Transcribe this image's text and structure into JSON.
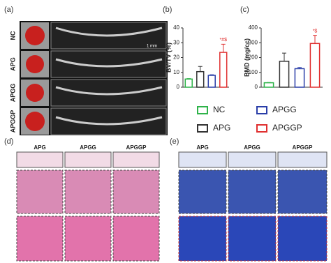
{
  "chart_data": [
    {
      "type": "bar",
      "y_label": "BV/TV (%)",
      "categories": [
        null,
        null,
        null,
        null
      ],
      "values": [
        5.5,
        10.5,
        8,
        23.5
      ],
      "errors": [
        0.3,
        3.5,
        0.4,
        5.5
      ],
      "colors": [
        "#2fb34a",
        "#333333",
        "#2a3ea8",
        "#e03030"
      ],
      "annotations": [
        null,
        null,
        null,
        "*#$"
      ],
      "ylim": [
        0,
        40
      ],
      "yticks": [
        0,
        10,
        20,
        30,
        40
      ]
    },
    {
      "type": "bar",
      "y_label": "BMD (mg/cc)",
      "categories": [
        null,
        null,
        null,
        null
      ],
      "values": [
        30,
        175,
        125,
        295
      ],
      "errors": [
        2,
        55,
        8,
        55
      ],
      "colors": [
        "#2fb34a",
        "#333333",
        "#2a3ea8",
        "#e03030"
      ],
      "annotations": [
        null,
        null,
        null,
        "*$"
      ],
      "ylim": [
        0,
        400
      ],
      "yticks": [
        0,
        100,
        200,
        300,
        400
      ]
    }
  ],
  "legend": [
    {
      "name": "NC",
      "color": "#2fb34a"
    },
    {
      "name": "APGG",
      "color": "#2a3ea8"
    },
    {
      "name": "APG",
      "color": "#333333"
    },
    {
      "name": "APGGP",
      "color": "#e03030"
    }
  ],
  "panels": {
    "a": "(a)",
    "b": "(b)",
    "c": "(c)",
    "d": "(d)",
    "e": "(e)"
  },
  "rows_a": [
    "NC",
    "APG",
    "APGG",
    "APGGP"
  ],
  "scale": "1 mm",
  "columns_d": [
    "APG",
    "APGG",
    "APGGP"
  ],
  "columns_e": [
    "APG",
    "APGG",
    "APGGP"
  ]
}
